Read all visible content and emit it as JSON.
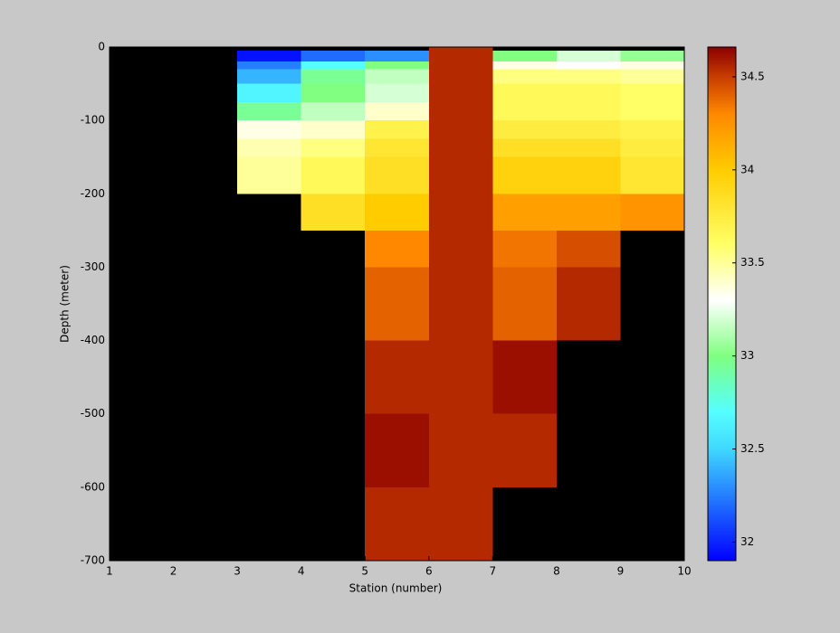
{
  "chart_data": {
    "type": "heatmap",
    "xlabel": "Station (number)",
    "ylabel": "Depth (meter)",
    "x": [
      1,
      2,
      3,
      4,
      5,
      6,
      7,
      8,
      9,
      10
    ],
    "y": [
      0,
      -5,
      -20,
      -30,
      -50,
      -75,
      -100,
      -125,
      -150,
      -200,
      -250,
      -300,
      -400,
      -500,
      -600,
      -700
    ],
    "values": [
      [
        null,
        null,
        null,
        null,
        null,
        34.55,
        null,
        null,
        null
      ],
      [
        null,
        null,
        31.95,
        32.2,
        32.3,
        34.55,
        33.0,
        33.2,
        33.05
      ],
      [
        null,
        null,
        32.25,
        32.7,
        33.0,
        34.55,
        33.35,
        33.3,
        33.35
      ],
      [
        null,
        null,
        32.4,
        32.95,
        33.15,
        34.55,
        33.55,
        33.55,
        33.5
      ],
      [
        null,
        null,
        32.65,
        33.0,
        33.2,
        34.55,
        33.65,
        33.65,
        33.6
      ],
      [
        null,
        null,
        32.95,
        33.15,
        33.4,
        34.55,
        33.65,
        33.65,
        33.6
      ],
      [
        null,
        null,
        33.35,
        33.4,
        33.7,
        34.55,
        33.75,
        33.75,
        33.7
      ],
      [
        null,
        null,
        33.45,
        33.55,
        33.8,
        34.55,
        33.85,
        33.85,
        33.75
      ],
      [
        null,
        null,
        33.5,
        33.65,
        33.85,
        34.55,
        33.95,
        33.95,
        33.8
      ],
      [
        null,
        null,
        null,
        33.85,
        34.0,
        34.55,
        34.2,
        34.2,
        34.25
      ],
      [
        null,
        null,
        null,
        null,
        34.3,
        34.55,
        34.35,
        34.45,
        null
      ],
      [
        null,
        null,
        null,
        null,
        34.4,
        34.55,
        34.4,
        34.55,
        null
      ],
      [
        null,
        null,
        null,
        null,
        34.55,
        34.55,
        34.62,
        null,
        null
      ],
      [
        null,
        null,
        null,
        null,
        34.62,
        34.55,
        34.55,
        null,
        null
      ],
      [
        null,
        null,
        null,
        null,
        34.55,
        34.55,
        null,
        null,
        null
      ]
    ],
    "xlim": [
      1,
      10
    ],
    "ylim": [
      -700,
      0
    ],
    "xticks": [
      1,
      2,
      3,
      4,
      5,
      6,
      7,
      8,
      9,
      10
    ],
    "yticks": [
      -700,
      -600,
      -500,
      -400,
      -300,
      -200,
      -100,
      0
    ],
    "clim": [
      31.9,
      34.66
    ],
    "cticks": [
      32,
      32.5,
      33,
      33.5,
      34,
      34.5
    ],
    "colormap": [
      [
        31.9,
        "#0000ff"
      ],
      [
        32.5,
        "#40d8ff"
      ],
      [
        32.7,
        "#55ffff"
      ],
      [
        33.0,
        "#80ff80"
      ],
      [
        33.3,
        "#ffffff"
      ],
      [
        33.6,
        "#ffff66"
      ],
      [
        34.0,
        "#ffcc00"
      ],
      [
        34.3,
        "#ff8800"
      ],
      [
        34.5,
        "#c83c00"
      ],
      [
        34.66,
        "#8b0000"
      ]
    ],
    "background": "#000000"
  }
}
